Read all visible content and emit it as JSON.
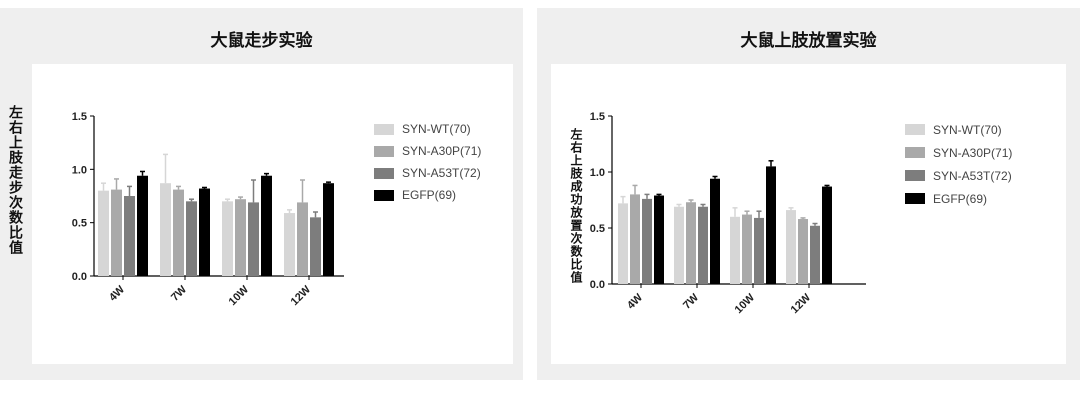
{
  "colors": {
    "SYN-WT(70)": "#d6d6d6",
    "SYN-A30P(71)": "#a9a9a9",
    "SYN-A53T(72)": "#7d7d7d",
    "EGFP(69)": "#000000"
  },
  "left": {
    "title": "大鼠走步实验",
    "ylabel": "左右上肢走步次数比值"
  },
  "right": {
    "title": "大鼠上肢放置实验",
    "ylabel": "左右上肢成功放置次数比值"
  },
  "chart_data": [
    {
      "type": "bar",
      "title": "大鼠走步实验",
      "xlabel": "",
      "ylabel": "左右上肢走步次数比值",
      "categories": [
        "4W",
        "7W",
        "10W",
        "12W"
      ],
      "ylim": [
        0,
        1.5
      ],
      "yticks": [
        "0.0",
        "0.5",
        "1.0",
        "1.5"
      ],
      "legend_position": "right",
      "series": [
        {
          "name": "SYN-WT(70)",
          "values": [
            0.8,
            0.87,
            0.7,
            0.59
          ],
          "errors": [
            0.07,
            0.27,
            0.02,
            0.03
          ]
        },
        {
          "name": "SYN-A30P(71)",
          "values": [
            0.81,
            0.81,
            0.72,
            0.69
          ],
          "errors": [
            0.1,
            0.03,
            0.02,
            0.21
          ]
        },
        {
          "name": "SYN-A53T(72)",
          "values": [
            0.75,
            0.7,
            0.69,
            0.55
          ],
          "errors": [
            0.09,
            0.02,
            0.21,
            0.05
          ]
        },
        {
          "name": "EGFP(69)",
          "values": [
            0.94,
            0.82,
            0.94,
            0.87
          ],
          "errors": [
            0.04,
            0.01,
            0.02,
            0.01
          ]
        }
      ]
    },
    {
      "type": "bar",
      "title": "大鼠上肢放置实验",
      "xlabel": "",
      "ylabel": "左右上肢成功放置次数比值",
      "categories": [
        "4W",
        "7W",
        "10W",
        "12W"
      ],
      "ylim": [
        0,
        1.5
      ],
      "yticks": [
        "0.0",
        "0.5",
        "1.0",
        "1.5"
      ],
      "legend_position": "right",
      "series": [
        {
          "name": "SYN-WT(70)",
          "values": [
            0.72,
            0.69,
            0.6,
            0.66
          ],
          "errors": [
            0.06,
            0.02,
            0.08,
            0.02
          ]
        },
        {
          "name": "SYN-A30P(71)",
          "values": [
            0.8,
            0.73,
            0.62,
            0.58
          ],
          "errors": [
            0.08,
            0.02,
            0.03,
            0.01
          ]
        },
        {
          "name": "SYN-A53T(72)",
          "values": [
            0.76,
            0.69,
            0.59,
            0.52
          ],
          "errors": [
            0.04,
            0.02,
            0.06,
            0.02
          ]
        },
        {
          "name": "EGFP(69)",
          "values": [
            0.79,
            0.94,
            1.05,
            0.87
          ],
          "errors": [
            0.01,
            0.02,
            0.05,
            0.01
          ]
        }
      ]
    }
  ]
}
